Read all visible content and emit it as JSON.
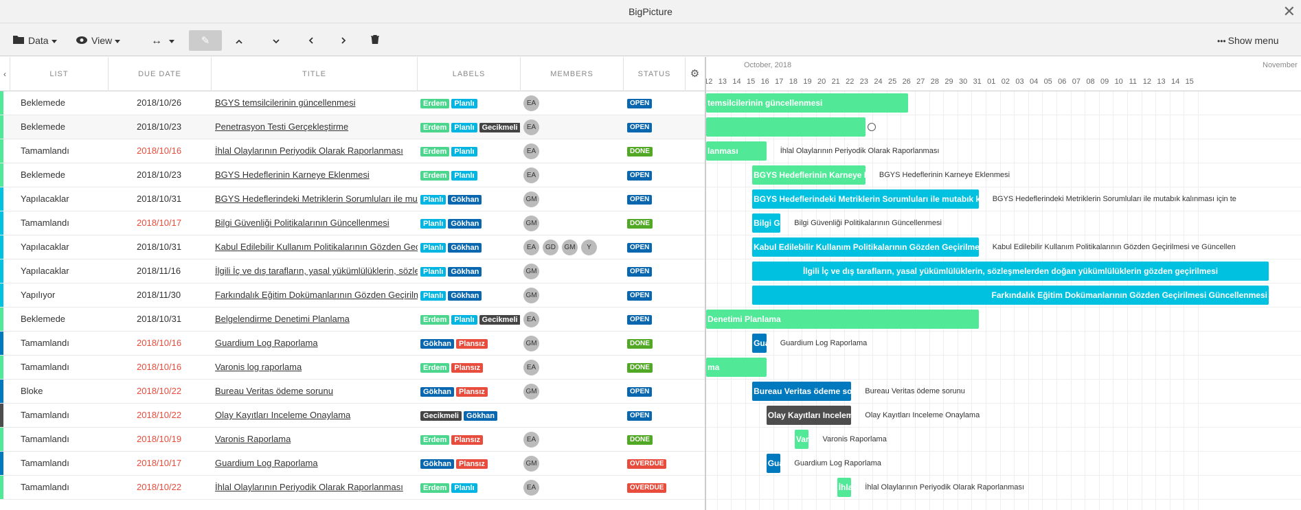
{
  "window": {
    "title": "BigPicture"
  },
  "toolbar": {
    "data_label": "Data",
    "view_label": "View",
    "show_menu_label": "Show menu"
  },
  "grid": {
    "columns": [
      "LIST",
      "DUE DATE",
      "TITLE",
      "LABELS",
      "MEMBERS",
      "STATUS"
    ]
  },
  "colors": {
    "erdem": "#4cd68d",
    "planli": "#00b5e2",
    "gokhan": "#0967b0",
    "gecikmeli": "#444444",
    "plansiz": "#e74c3c",
    "open": "#0967b0",
    "done": "#51a825",
    "overdue": "#e74c3c",
    "green_bar": "#51e898",
    "blue_bar": "#00c2e0",
    "navy_bar": "#0079bf",
    "dark_bar": "#4d4d4d",
    "overdue_date": "#e74c3c"
  },
  "rows": [
    {
      "stripe": "#51e898",
      "list": "Beklemede",
      "due": "2018/10/26",
      "due_overdue": false,
      "title": "BGYS temsilcilerinin güncellenmesi",
      "labels": [
        [
          "Erdem",
          "erdem"
        ],
        [
          "Planlı",
          "planli"
        ]
      ],
      "members": [
        "EA"
      ],
      "status": "OPEN",
      "status_color": "open"
    },
    {
      "stripe": "#51e898",
      "list": "Beklemede",
      "due": "2018/10/23",
      "due_overdue": false,
      "title": "Penetrasyon Testi Gerçekleştirme",
      "labels": [
        [
          "Erdem",
          "erdem"
        ],
        [
          "Planlı",
          "planli"
        ],
        [
          "Gecikmeli",
          "gecikmeli"
        ]
      ],
      "members": [
        "EA"
      ],
      "status": "OPEN",
      "status_color": "open"
    },
    {
      "stripe": "#51e898",
      "list": "Tamamlandı",
      "due": "2018/10/16",
      "due_overdue": true,
      "title": "İhlal Olaylarının Periyodik Olarak Raporlanması",
      "labels": [
        [
          "Erdem",
          "erdem"
        ],
        [
          "Planlı",
          "planli"
        ]
      ],
      "members": [
        "EA"
      ],
      "status": "DONE",
      "status_color": "done"
    },
    {
      "stripe": "#51e898",
      "list": "Beklemede",
      "due": "2018/10/23",
      "due_overdue": false,
      "title": "BGYS Hedeflerinin Karneye Eklenmesi",
      "labels": [
        [
          "Erdem",
          "erdem"
        ],
        [
          "Planlı",
          "planli"
        ]
      ],
      "members": [
        "EA"
      ],
      "status": "OPEN",
      "status_color": "open"
    },
    {
      "stripe": "#00c2e0",
      "list": "Yapılacaklar",
      "due": "2018/10/31",
      "due_overdue": false,
      "title": "BGYS Hedeflerindeki Metriklerin Sorumluları ile mutabık kalınması",
      "labels": [
        [
          "Planlı",
          "planli"
        ],
        [
          "Gökhan",
          "gokhan"
        ]
      ],
      "members": [
        "GM"
      ],
      "status": "OPEN",
      "status_color": "open"
    },
    {
      "stripe": "#00c2e0",
      "list": "Tamamlandı",
      "due": "2018/10/17",
      "due_overdue": true,
      "title": "Bilgi Güvenliği Politikalarının Güncellenmesi",
      "labels": [
        [
          "Planlı",
          "planli"
        ],
        [
          "Gökhan",
          "gokhan"
        ]
      ],
      "members": [
        "GM"
      ],
      "status": "DONE",
      "status_color": "done"
    },
    {
      "stripe": "#00c2e0",
      "list": "Yapılacaklar",
      "due": "2018/10/31",
      "due_overdue": false,
      "title": "Kabul Edilebilir Kullanım Politikalarının Gözden Geçirilmesi",
      "labels": [
        [
          "Planlı",
          "planli"
        ],
        [
          "Gökhan",
          "gokhan"
        ]
      ],
      "members": [
        "EA",
        "GD",
        "GM",
        "Y"
      ],
      "status": "OPEN",
      "status_color": "open"
    },
    {
      "stripe": "#00c2e0",
      "list": "Yapılacaklar",
      "due": "2018/11/16",
      "due_overdue": false,
      "title": "İlgili İç ve dış tarafların, yasal yükümlülüklerin, sözleşmelerden doğan yükümlülüklerin",
      "labels": [
        [
          "Planlı",
          "planli"
        ],
        [
          "Gökhan",
          "gokhan"
        ]
      ],
      "members": [
        "GM"
      ],
      "status": "OPEN",
      "status_color": "open"
    },
    {
      "stripe": "#00c2e0",
      "list": "Yapılıyor",
      "due": "2018/11/30",
      "due_overdue": false,
      "title": "Farkındalık Eğitim Dokümanlarının Gözden Geçirilmesi",
      "labels": [
        [
          "Planlı",
          "planli"
        ],
        [
          "Gökhan",
          "gokhan"
        ]
      ],
      "members": [
        "GM"
      ],
      "status": "OPEN",
      "status_color": "open"
    },
    {
      "stripe": "#51e898",
      "list": "Beklemede",
      "due": "2018/10/31",
      "due_overdue": false,
      "title": "Belgelendirme Denetimi Planlama",
      "labels": [
        [
          "Erdem",
          "erdem"
        ],
        [
          "Planlı",
          "planli"
        ],
        [
          "Gecikmeli",
          "gecikmeli"
        ]
      ],
      "members": [
        "EA"
      ],
      "status": "OPEN",
      "status_color": "open"
    },
    {
      "stripe": "#0079bf",
      "list": "Tamamlandı",
      "due": "2018/10/16",
      "due_overdue": true,
      "title": "Guardium Log Raporlama",
      "labels": [
        [
          "Gökhan",
          "gokhan"
        ],
        [
          "Plansız",
          "plansiz"
        ]
      ],
      "members": [
        "GM"
      ],
      "status": "DONE",
      "status_color": "done"
    },
    {
      "stripe": "#51e898",
      "list": "Tamamlandı",
      "due": "2018/10/16",
      "due_overdue": true,
      "title": "Varonis log raporlama",
      "labels": [
        [
          "Erdem",
          "erdem"
        ],
        [
          "Plansız",
          "plansiz"
        ]
      ],
      "members": [
        "EA"
      ],
      "status": "DONE",
      "status_color": "done"
    },
    {
      "stripe": "#0079bf",
      "list": "Bloke",
      "due": "2018/10/22",
      "due_overdue": true,
      "title": "Bureau Veritas ödeme sorunu",
      "labels": [
        [
          "Gökhan",
          "gokhan"
        ],
        [
          "Plansız",
          "plansiz"
        ]
      ],
      "members": [
        "GM"
      ],
      "status": "OPEN",
      "status_color": "open"
    },
    {
      "stripe": "#4d4d4d",
      "list": "Tamamlandı",
      "due": "2018/10/22",
      "due_overdue": true,
      "title": "Olay Kayıtları Inceleme Onaylama",
      "labels": [
        [
          "Gecikmeli",
          "gecikmeli"
        ],
        [
          "Gökhan",
          "gokhan"
        ]
      ],
      "members": [],
      "status": "OPEN",
      "status_color": "open"
    },
    {
      "stripe": "#51e898",
      "list": "Tamamlandı",
      "due": "2018/10/19",
      "due_overdue": true,
      "title": "Varonis Raporlama",
      "labels": [
        [
          "Erdem",
          "erdem"
        ],
        [
          "Plansız",
          "plansiz"
        ]
      ],
      "members": [
        "EA"
      ],
      "status": "DONE",
      "status_color": "done"
    },
    {
      "stripe": "#0079bf",
      "list": "Tamamlandı",
      "due": "2018/10/17",
      "due_overdue": true,
      "title": "Guardium Log Raporlama",
      "labels": [
        [
          "Gökhan",
          "gokhan"
        ],
        [
          "Plansız",
          "plansiz"
        ]
      ],
      "members": [
        "GM"
      ],
      "status": "OVERDUE",
      "status_color": "overdue"
    },
    {
      "stripe": "#51e898",
      "list": "Tamamlandı",
      "due": "2018/10/22",
      "due_overdue": true,
      "title": "İhlal Olaylarının Periyodik Olarak Raporlanması",
      "labels": [
        [
          "Erdem",
          "erdem"
        ],
        [
          "Planlı",
          "planli"
        ]
      ],
      "members": [
        "EA"
      ],
      "status": "OVERDUE",
      "status_color": "overdue"
    }
  ],
  "gantt": {
    "months": [
      "October, 2018",
      "November"
    ],
    "days": [
      "12",
      "13",
      "14",
      "15",
      "16",
      "17",
      "18",
      "19",
      "20",
      "21",
      "22",
      "23",
      "24",
      "25",
      "26",
      "27",
      "28",
      "29",
      "30",
      "31",
      "01",
      "02",
      "03",
      "04",
      "05",
      "06",
      "07",
      "08",
      "09",
      "10",
      "11",
      "12",
      "13",
      "14",
      "15"
    ],
    "bars": [
      {
        "start": 0,
        "end": 14.5,
        "color": "green_bar",
        "text": "temsilcilerinin güncellenmesi",
        "side": ""
      },
      {
        "start": 0,
        "end": 11.5,
        "color": "green_bar",
        "text": "",
        "side": "",
        "milestone": true
      },
      {
        "start": 0,
        "end": 4.5,
        "color": "green_bar",
        "text": "lanması",
        "side": "İhlal Olaylarının Periyodik Olarak Raporlanması"
      },
      {
        "start": 3.5,
        "end": 11.5,
        "color": "green_bar",
        "text": "BGYS Hedeflerinin Karneye Eklenmesi",
        "side": "BGYS Hedeflerinin Karneye Eklenmesi"
      },
      {
        "start": 3.5,
        "end": 19.5,
        "color": "blue_bar",
        "text": "BGYS Hedeflerindeki Metriklerin Sorumluları ile mutabık kalınması için",
        "side": "BGYS Hedeflerindeki Metriklerin Sorumluları ile mutabık kalınması için te"
      },
      {
        "start": 3.5,
        "end": 5.5,
        "color": "blue_bar",
        "text": "Bilgi Güvenliği",
        "side": "Bilgi Güvenliği Politikalarının Güncellenmesi"
      },
      {
        "start": 3.5,
        "end": 19.5,
        "color": "blue_bar",
        "text": "Kabul Edilebilir Kullanım Politikalarının Gözden Geçirilmesi ve Güncellenmesi",
        "side": "Kabul Edilebilir Kullanım Politikalarının Gözden Geçirilmesi ve Güncellen"
      },
      {
        "start": 3.5,
        "end": 40,
        "color": "blue_bar",
        "text": "İlgili İç ve dış tarafların, yasal yükümlülüklerin, sözleşmelerden doğan yükümlülüklerin gözden geçirilmesi",
        "side": "",
        "center": true
      },
      {
        "start": 3.5,
        "end": 40,
        "color": "blue_bar",
        "text": "Farkındalık Eğitim Dokümanlarının Gözden Geçirilmesi Güncellenmesi",
        "side": "",
        "right": true
      },
      {
        "start": 0,
        "end": 19.5,
        "color": "green_bar",
        "text": "Denetimi Planlama",
        "side": ""
      },
      {
        "start": 3.5,
        "end": 4.5,
        "color": "navy_bar",
        "text": "Guardium",
        "side": "Guardium Log Raporlama"
      },
      {
        "start": 0,
        "end": 4.5,
        "color": "green_bar",
        "text": "ma",
        "side": ""
      },
      {
        "start": 3.5,
        "end": 10.5,
        "color": "navy_bar",
        "text": "Bureau Veritas ödeme sorunu",
        "side": "Bureau Veritas ödeme sorunu"
      },
      {
        "start": 4.5,
        "end": 10.5,
        "color": "dark_bar",
        "text": "Olay Kayıtları Inceleme Onaylama",
        "side": "Olay Kayıtları Inceleme Onaylama"
      },
      {
        "start": 6.5,
        "end": 7.5,
        "color": "green_bar",
        "text": "Varonis",
        "side": "Varonis Raporlama"
      },
      {
        "start": 4.5,
        "end": 5.5,
        "color": "navy_bar",
        "text": "Guardium",
        "side": "Guardium Log Raporlama"
      },
      {
        "start": 9.5,
        "end": 10.5,
        "color": "green_bar",
        "text": "İhlal",
        "side": "İhlal Olaylarının Periyodik Olarak Raporlanması"
      }
    ]
  }
}
